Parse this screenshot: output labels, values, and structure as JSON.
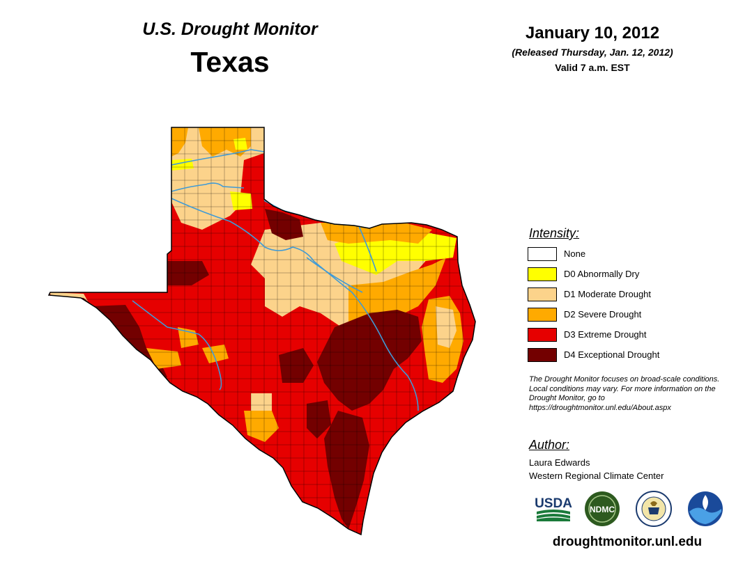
{
  "header": {
    "title": "U.S. Drought Monitor",
    "state": "Texas",
    "date": "January 10, 2012",
    "released": "(Released Thursday, Jan. 12, 2012)",
    "valid": "Valid 7 a.m. EST"
  },
  "legend": {
    "heading": "Intensity:",
    "items": [
      {
        "label": "None",
        "color": "#ffffff"
      },
      {
        "label": "D0 Abnormally Dry",
        "color": "#ffff00"
      },
      {
        "label": "D1 Moderate Drought",
        "color": "#fcd38b"
      },
      {
        "label": "D2 Severe Drought",
        "color": "#ffaa00"
      },
      {
        "label": "D3 Extreme Drought",
        "color": "#e60000"
      },
      {
        "label": "D4 Exceptional Drought",
        "color": "#730000"
      }
    ]
  },
  "note": "The Drought Monitor focuses on broad-scale conditions. Local conditions may vary. For more information on the Drought Monitor, go to https://droughtmonitor.unl.edu/About.aspx",
  "author": {
    "heading": "Author:",
    "name": "Laura Edwards",
    "organization": "Western Regional Climate Center"
  },
  "logos": {
    "usda": "USDA",
    "ndmc": "NDMC",
    "doc": "DOC",
    "noaa": "NOAA"
  },
  "url": "droughtmonitor.unl.edu",
  "colors": {
    "river": "#3f9ad6",
    "county_line": "#000000"
  }
}
